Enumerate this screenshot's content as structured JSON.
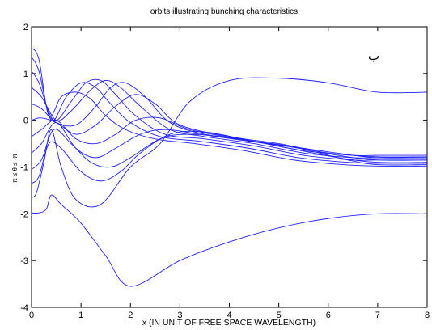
{
  "chart_data": {
    "type": "line",
    "title": "orbits illustrating bunching characteristics",
    "xlabel": "x (IN UNIT OF FREE SPACE WAVELENGTH)",
    "ylabel": "π ≤ θ ≤ -π",
    "annotation": "ب",
    "xlim": [
      0,
      8
    ],
    "ylim": [
      -4,
      2
    ],
    "x_ticks": [
      0,
      1,
      2,
      3,
      4,
      5,
      6,
      7,
      8
    ],
    "y_ticks": [
      -4,
      -3,
      -2,
      -1,
      0,
      1,
      2
    ],
    "x_tick_labels": [
      "0",
      "1",
      "2",
      "3",
      "4",
      "5",
      "6",
      "7",
      "8"
    ],
    "y_tick_labels": [
      "-4",
      "-3",
      "-2",
      "-1",
      "0",
      "1",
      "2"
    ],
    "grid": false,
    "line_color": "#2020ff",
    "series": [
      {
        "x": [
          0,
          0.15,
          0.3,
          0.4,
          0.6,
          1.0,
          1.5,
          2.0,
          3.0,
          4.0,
          5.0,
          6.0,
          7.0,
          8.0
        ],
        "y": [
          -1.98,
          -1.98,
          -1.9,
          -1.6,
          -1.8,
          -2.2,
          -2.9,
          -3.55,
          -3.0,
          -2.6,
          -2.3,
          -2.1,
          -2.0,
          -2.0
        ]
      },
      {
        "x": [
          0,
          0.1,
          0.25,
          0.4,
          0.6,
          0.9,
          1.4,
          2.0,
          2.6,
          3.2,
          4.0,
          5.0,
          6.0,
          7.0,
          8.0
        ],
        "y": [
          -1.65,
          -1.55,
          -0.9,
          -0.2,
          -1.0,
          -1.7,
          -1.8,
          -1.0,
          -0.5,
          0.4,
          0.85,
          0.9,
          0.8,
          0.6,
          0.6
        ]
      },
      {
        "x": [
          0,
          0.15,
          0.35,
          0.6,
          1.0,
          1.4,
          1.8,
          2.2,
          2.8,
          3.5,
          4.5,
          5.5,
          6.5,
          7.0,
          8.0
        ],
        "y": [
          -1.35,
          -1.2,
          -0.5,
          -0.6,
          -1.1,
          -1.3,
          -1.1,
          -0.7,
          -0.3,
          -0.25,
          -0.45,
          -0.6,
          -0.75,
          -0.8,
          -0.8
        ]
      },
      {
        "x": [
          0,
          0.2,
          0.45,
          0.8,
          1.2,
          1.6,
          2.0,
          2.6,
          3.2,
          4.2,
          5.2,
          6.2,
          7.0,
          8.0
        ],
        "y": [
          -1.05,
          -0.85,
          -0.2,
          -0.5,
          -0.9,
          -1.0,
          -0.8,
          -0.4,
          -0.3,
          -0.4,
          -0.6,
          -0.8,
          -0.9,
          -0.9
        ]
      },
      {
        "x": [
          0,
          0.2,
          0.5,
          0.9,
          1.3,
          1.7,
          2.2,
          2.7,
          3.4,
          4.4,
          5.4,
          6.4,
          7.0,
          8.0
        ],
        "y": [
          -0.7,
          -0.5,
          -0.05,
          -0.6,
          -0.8,
          -0.6,
          -0.3,
          -0.2,
          -0.3,
          -0.45,
          -0.6,
          -0.85,
          -0.95,
          -0.95
        ]
      },
      {
        "x": [
          0,
          0.2,
          0.5,
          0.9,
          1.3,
          1.7,
          2.1,
          2.6,
          3.2,
          4.2,
          5.2,
          6.2,
          7.0,
          8.0
        ],
        "y": [
          -0.35,
          -0.2,
          0.0,
          -0.4,
          -0.5,
          -0.3,
          0.0,
          0.05,
          -0.2,
          -0.4,
          -0.55,
          -0.75,
          -0.85,
          -0.85
        ]
      },
      {
        "x": [
          0,
          0.2,
          0.5,
          0.9,
          1.3,
          1.7,
          2.1,
          2.5,
          3.0,
          4.0,
          5.0,
          6.0,
          7.0,
          8.0
        ],
        "y": [
          0.0,
          0.05,
          -0.05,
          -0.3,
          -0.1,
          0.3,
          0.55,
          0.35,
          -0.1,
          -0.35,
          -0.5,
          -0.7,
          -0.78,
          -0.78
        ]
      },
      {
        "x": [
          0,
          0.2,
          0.5,
          0.9,
          1.3,
          1.6,
          1.9,
          2.3,
          2.8,
          3.5,
          4.5,
          5.5,
          6.5,
          7.0,
          8.0
        ],
        "y": [
          0.35,
          0.25,
          -0.05,
          -0.1,
          0.3,
          0.7,
          0.8,
          0.5,
          -0.05,
          -0.3,
          -0.45,
          -0.65,
          -0.75,
          -0.75,
          -0.75
        ]
      },
      {
        "x": [
          0,
          0.2,
          0.5,
          0.8,
          1.2,
          1.5,
          1.8,
          2.2,
          2.8,
          3.5,
          4.5,
          5.5,
          6.5,
          7.0,
          8.0
        ],
        "y": [
          0.7,
          0.5,
          0.0,
          0.2,
          0.65,
          0.85,
          0.7,
          0.3,
          -0.2,
          -0.35,
          -0.5,
          -0.7,
          -0.8,
          -0.8,
          -0.8
        ]
      },
      {
        "x": [
          0,
          0.15,
          0.45,
          0.8,
          1.1,
          1.4,
          1.7,
          2.1,
          2.7,
          3.5,
          4.5,
          5.5,
          6.5,
          7.0,
          8.0
        ],
        "y": [
          1.05,
          0.8,
          0.0,
          0.4,
          0.8,
          0.85,
          0.55,
          0.1,
          -0.3,
          -0.4,
          -0.55,
          -0.75,
          -0.85,
          -0.85,
          -0.85
        ]
      },
      {
        "x": [
          0,
          0.15,
          0.4,
          0.7,
          1.0,
          1.3,
          1.6,
          2.0,
          2.6,
          3.4,
          4.4,
          5.4,
          6.4,
          7.0,
          8.0
        ],
        "y": [
          1.35,
          1.05,
          0.0,
          0.5,
          0.8,
          0.7,
          0.35,
          -0.05,
          -0.35,
          -0.45,
          -0.6,
          -0.8,
          -0.9,
          -0.92,
          -0.92
        ]
      },
      {
        "x": [
          0,
          0.15,
          0.35,
          0.6,
          0.9,
          1.2,
          1.5,
          1.9,
          2.5,
          3.3,
          4.3,
          5.3,
          6.3,
          7.0,
          8.0
        ],
        "y": [
          1.55,
          1.3,
          0.1,
          0.5,
          0.6,
          0.45,
          0.1,
          -0.2,
          -0.4,
          -0.5,
          -0.65,
          -0.85,
          -0.95,
          -0.98,
          -0.98
        ]
      }
    ]
  }
}
